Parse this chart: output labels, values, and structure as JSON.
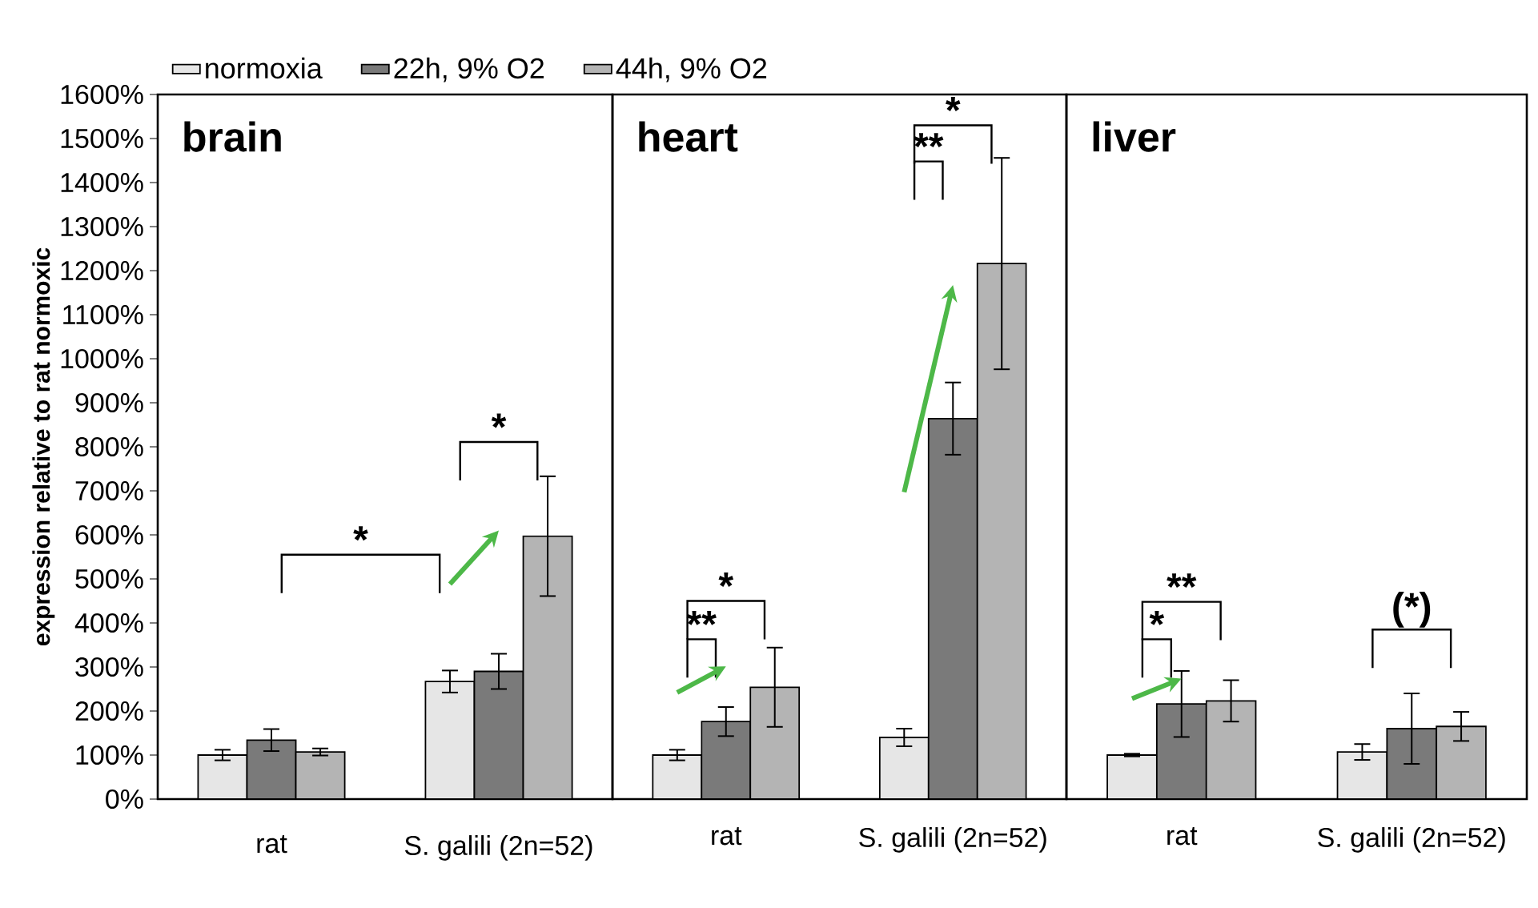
{
  "chart_data": [
    {
      "type": "bar",
      "title": "brain",
      "ylabel": "expression relative to rat normoxic",
      "categories": [
        "rat",
        "S. galili (2n=52)"
      ],
      "legend": "top",
      "series": [
        {
          "name": "normoxia",
          "color": "#e6e6e6",
          "values": [
            100,
            267
          ],
          "errors": [
            12,
            25
          ]
        },
        {
          "name": "22h, 9% O2",
          "color": "#7a7a7a",
          "values": [
            134,
            290
          ],
          "errors": [
            25,
            40
          ]
        },
        {
          "name": "44h, 9% O2",
          "color": "#b4b4b4",
          "values": [
            107,
            597
          ],
          "errors": [
            8,
            136
          ]
        }
      ],
      "ylim": [
        0,
        1600
      ],
      "yticks": [
        {
          "value": 0,
          "label": "0%"
        },
        {
          "value": 100,
          "label": "100%"
        },
        {
          "value": 200,
          "label": "200%"
        },
        {
          "value": 300,
          "label": "300%"
        },
        {
          "value": 400,
          "label": "400%"
        },
        {
          "value": 500,
          "label": "500%"
        },
        {
          "value": 600,
          "label": "600%"
        },
        {
          "value": 700,
          "label": "700%"
        },
        {
          "value": 800,
          "label": "800%"
        },
        {
          "value": 900,
          "label": "900%"
        },
        {
          "value": 1000,
          "label": "1000%"
        },
        {
          "value": 1100,
          "label": "1100%"
        },
        {
          "value": 1200,
          "label": "1200%"
        },
        {
          "value": 1300,
          "label": "1300%"
        },
        {
          "value": 1400,
          "label": "1400%"
        },
        {
          "value": 1500,
          "label": "1500%"
        },
        {
          "value": 1600,
          "label": "1600%"
        }
      ],
      "annotations": [
        "*",
        "*"
      ]
    },
    {
      "type": "bar",
      "title": "heart",
      "categories": [
        "rat",
        "S. galili (2n=52)"
      ],
      "tick_labels": "x",
      "series": [
        {
          "color": "#e6e6e6",
          "values": [
            100,
            140
          ],
          "errors": [
            12,
            20
          ]
        },
        {
          "color": "#7a7a7a",
          "values": [
            176,
            864
          ],
          "errors": [
            33,
            82
          ]
        },
        {
          "color": "#b4b4b4",
          "values": [
            254,
            1216
          ],
          "errors": [
            90,
            240
          ]
        }
      ],
      "ylim": [
        0,
        1600
      ],
      "annotations": [
        "**",
        "*",
        "**",
        "*"
      ]
    },
    {
      "type": "bar",
      "title": "liver",
      "categories": [
        "rat",
        "S. galili (2n=52)"
      ],
      "tick_labels": "x",
      "series": [
        {
          "color": "#e6e6e6",
          "values": [
            100,
            107
          ],
          "errors": [
            3,
            18
          ]
        },
        {
          "color": "#7a7a7a",
          "values": [
            216,
            160
          ],
          "errors": [
            75,
            80
          ]
        },
        {
          "color": "#b4b4b4",
          "values": [
            223,
            165
          ],
          "errors": [
            47,
            33
          ]
        }
      ],
      "ylim": [
        0,
        1600
      ],
      "annotations": [
        "*",
        "**",
        "(*)"
      ]
    }
  ]
}
